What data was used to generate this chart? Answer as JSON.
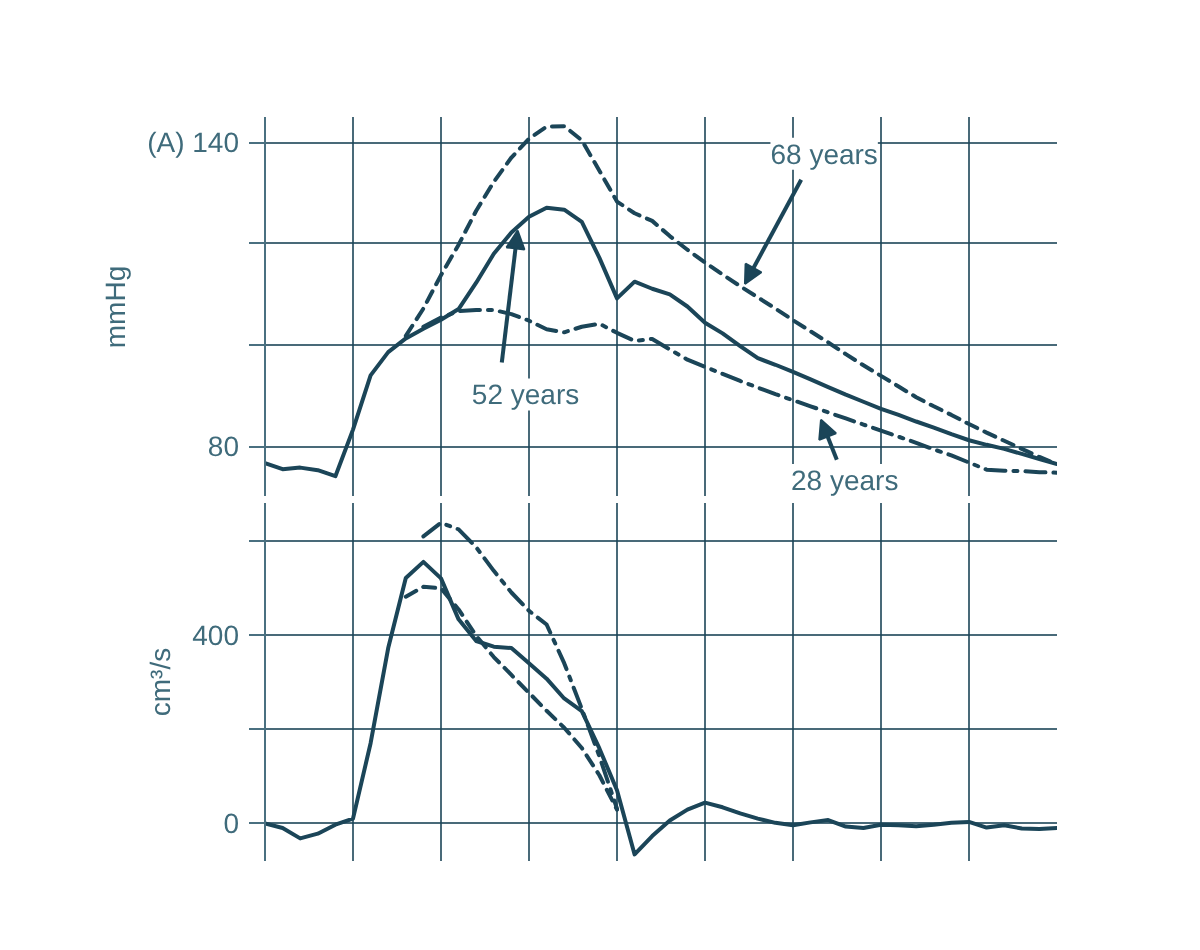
{
  "chart_data": [
    {
      "type": "line",
      "ylabel": "mmHg",
      "ylim": [
        70,
        145
      ],
      "categories": [
        null,
        null,
        null,
        null,
        null,
        null,
        null,
        null,
        null,
        null,
        null,
        null,
        null,
        null,
        null,
        null,
        null,
        null,
        null,
        null,
        null,
        null,
        null,
        null,
        null,
        null,
        null,
        null,
        null,
        null,
        null,
        null,
        null,
        null,
        null,
        null,
        null,
        null,
        null,
        null,
        null,
        null,
        null,
        null,
        null,
        null
      ],
      "yticks": [
        80,
        {
          "value": 100,
          "label": null
        },
        {
          "value": 120,
          "label": null
        },
        {
          "value": 140,
          "label": "(A) 140"
        }
      ],
      "grid": true,
      "tick_labels": "y",
      "series": [
        {
          "color": "#1b4558",
          "line_style": "solid",
          "values": [
            76.7,
            75.5,
            75.8,
            75.3,
            74.1,
            83.3,
            94.0,
            98.6,
            101.3,
            103.2,
            105.0,
            107.1,
            112.3,
            118.0,
            122.2,
            125.3,
            127.1,
            126.7,
            124.3,
            117.2,
            109.2,
            112.5,
            111.1,
            110.0,
            107.6,
            104.4,
            102.3,
            99.8,
            97.4,
            96.1,
            94.7,
            93.2,
            91.7,
            90.2,
            88.8,
            87.4,
            86.2,
            84.9,
            83.7,
            82.4,
            81.2,
            80.3,
            79.5,
            78.5,
            77.5,
            76.5
          ]
        },
        {
          "color": "#1b4558",
          "line_style": "dashed",
          "values": [
            null,
            null,
            null,
            null,
            null,
            null,
            null,
            null,
            101.8,
            107.2,
            113.8,
            119.8,
            126.5,
            132.2,
            137.0,
            140.7,
            143.1,
            143.2,
            140.4,
            134.4,
            128.3,
            126.0,
            124.5,
            121.5,
            118.8,
            116.3,
            113.9,
            111.6,
            109.4,
            107.2,
            104.9,
            102.7,
            100.5,
            98.2,
            96.0,
            93.9,
            91.8,
            89.7,
            87.9,
            86.2,
            84.4,
            82.7,
            81.1,
            79.5,
            77.9,
            76.5
          ]
        },
        {
          "color": "#1b4558",
          "line_style": "dashdot",
          "values": [
            null,
            null,
            null,
            null,
            null,
            null,
            null,
            null,
            null,
            103.6,
            105.4,
            106.7,
            106.9,
            106.9,
            106.1,
            104.8,
            103.1,
            102.5,
            103.6,
            104.2,
            102.4,
            100.8,
            101.2,
            99.1,
            97.1,
            95.7,
            94.3,
            92.9,
            91.6,
            90.3,
            89.1,
            87.9,
            86.7,
            85.5,
            84.3,
            83.1,
            81.9,
            80.7,
            79.4,
            78.2,
            76.8,
            75.4,
            75.2,
            75.1,
            74.9,
            74.8
          ]
        }
      ],
      "annotations": [
        "68 years",
        "52 years",
        "28 years"
      ]
    },
    {
      "type": "line",
      "ylabel": "cm³/s",
      "ylim": [
        -80,
        680
      ],
      "categories": [
        null,
        null,
        null,
        null,
        null,
        null,
        null,
        null,
        null,
        null,
        null,
        null,
        null,
        null,
        null,
        null,
        null,
        null,
        null,
        null,
        null,
        null,
        null,
        null,
        null,
        null,
        null,
        null,
        null,
        null,
        null,
        null,
        null,
        null,
        null,
        null,
        null,
        null,
        null,
        null,
        null,
        null,
        null,
        null,
        null,
        null
      ],
      "yticks": [
        0,
        {
          "value": 200,
          "label": null
        },
        400,
        {
          "value": 600,
          "label": null
        }
      ],
      "grid": true,
      "tick_labels": "y",
      "series": [
        {
          "color": "#1b4558",
          "line_style": "solid",
          "values": [
            0,
            -10,
            -32,
            -22,
            -3,
            10,
            170,
            372,
            521,
            555,
            520,
            433,
            387,
            375,
            372,
            340,
            307,
            265,
            238,
            159,
            70,
            -66,
            -27,
            6,
            29,
            44,
            34,
            21,
            10,
            1,
            -4,
            2,
            7,
            -7,
            -10,
            -3,
            -4,
            -6,
            -3,
            1,
            3,
            -9,
            -4,
            -11,
            -12,
            -10
          ]
        },
        {
          "color": "#1b4558",
          "line_style": "dashed",
          "values": [
            null,
            null,
            null,
            null,
            null,
            null,
            null,
            null,
            481,
            502,
            499,
            454,
            398,
            353,
            315,
            277,
            239,
            203,
            160,
            102,
            29,
            null,
            null,
            null,
            null,
            null,
            null,
            null,
            null,
            null,
            null,
            null,
            null,
            null,
            null,
            null,
            null,
            null,
            null,
            null,
            null,
            null,
            null,
            null,
            null,
            null
          ]
        },
        {
          "color": "#1b4558",
          "line_style": "dashdot",
          "values": [
            null,
            null,
            null,
            null,
            null,
            null,
            null,
            null,
            null,
            609,
            638,
            624,
            586,
            536,
            490,
            451,
            422,
            340,
            243,
            142,
            31,
            null,
            null,
            null,
            null,
            null,
            null,
            null,
            null,
            null,
            null,
            null,
            null,
            null,
            null,
            null,
            null,
            null,
            null,
            null,
            null,
            null,
            null,
            null,
            null,
            null
          ]
        }
      ]
    }
  ]
}
